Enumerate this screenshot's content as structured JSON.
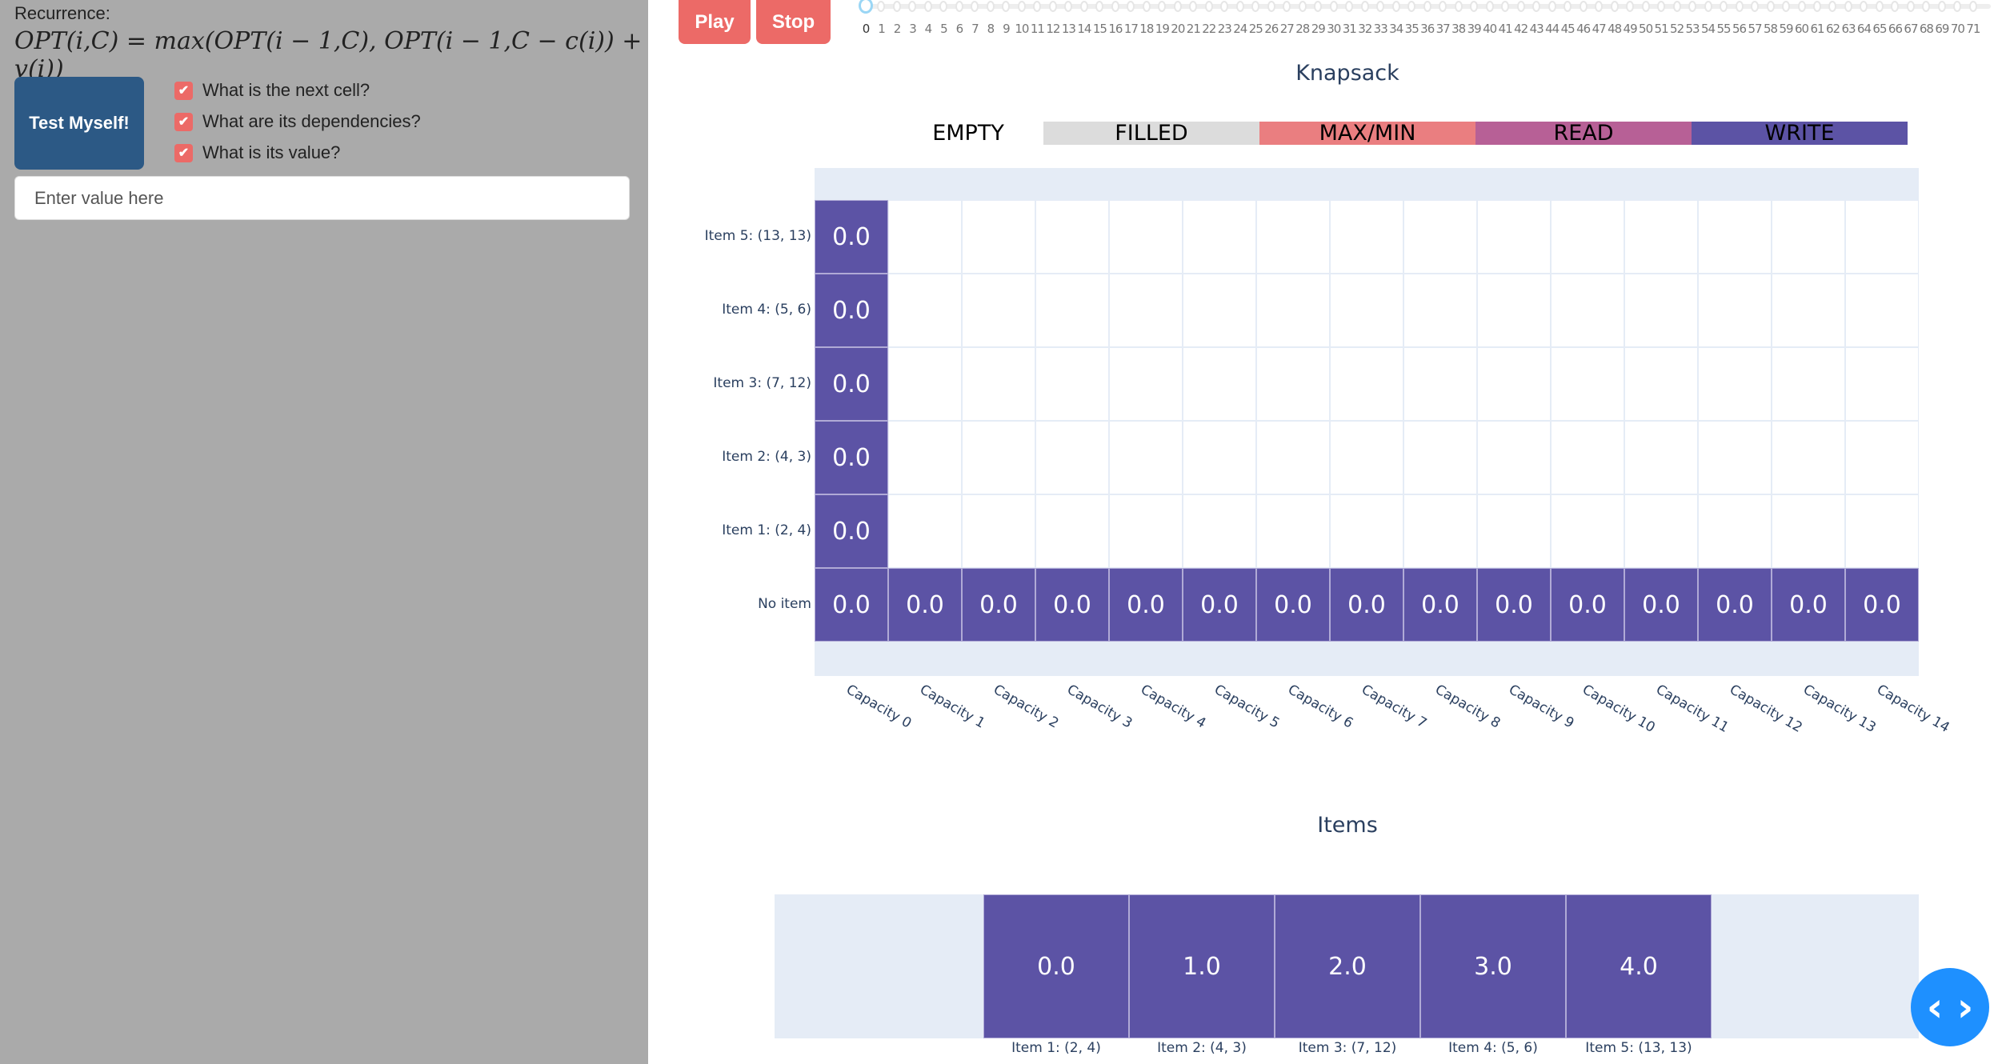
{
  "left_panel": {
    "recurrence_label": "Recurrence:",
    "formula": "OPT(i,C) = max(OPT(i − 1,C), OPT(i − 1,C − c(i)) + v(i))",
    "test_button": "Test Myself!",
    "checkboxes": [
      {
        "label": "What is the next cell?",
        "checked": true
      },
      {
        "label": "What are its dependencies?",
        "checked": true
      },
      {
        "label": "What is its value?",
        "checked": true
      }
    ],
    "input_placeholder": "Enter value here",
    "input_value": ""
  },
  "controls": {
    "play": "Play",
    "stop": "Stop"
  },
  "slider": {
    "min": 0,
    "max": 71,
    "value": 0
  },
  "knapsack": {
    "title": "Knapsack",
    "legend": [
      {
        "label": "EMPTY",
        "color": "#ffffff"
      },
      {
        "label": "FILLED",
        "color": "#dcdcdc"
      },
      {
        "label": "MAX/MIN",
        "color": "#ea7e80"
      },
      {
        "label": "READ",
        "color": "#b76096"
      },
      {
        "label": "WRITE",
        "color": "#5c53a5"
      }
    ],
    "row_labels": [
      "Item 5: (13, 13)",
      "Item 4: (5, 6)",
      "Item 3: (7, 12)",
      "Item 2: (4, 3)",
      "Item 1: (2, 4)",
      "No item"
    ],
    "col_labels": [
      "Capacity 0",
      "Capacity 1",
      "Capacity 2",
      "Capacity 3",
      "Capacity 4",
      "Capacity 5",
      "Capacity 6",
      "Capacity 7",
      "Capacity 8",
      "Capacity 9",
      "Capacity 10",
      "Capacity 11",
      "Capacity 12",
      "Capacity 13",
      "Capacity 14"
    ],
    "cells": [
      [
        "0.0",
        null,
        null,
        null,
        null,
        null,
        null,
        null,
        null,
        null,
        null,
        null,
        null,
        null,
        null
      ],
      [
        "0.0",
        null,
        null,
        null,
        null,
        null,
        null,
        null,
        null,
        null,
        null,
        null,
        null,
        null,
        null
      ],
      [
        "0.0",
        null,
        null,
        null,
        null,
        null,
        null,
        null,
        null,
        null,
        null,
        null,
        null,
        null,
        null
      ],
      [
        "0.0",
        null,
        null,
        null,
        null,
        null,
        null,
        null,
        null,
        null,
        null,
        null,
        null,
        null,
        null
      ],
      [
        "0.0",
        null,
        null,
        null,
        null,
        null,
        null,
        null,
        null,
        null,
        null,
        null,
        null,
        null,
        null
      ],
      [
        "0.0",
        "0.0",
        "0.0",
        "0.0",
        "0.0",
        "0.0",
        "0.0",
        "0.0",
        "0.0",
        "0.0",
        "0.0",
        "0.0",
        "0.0",
        "0.0",
        "0.0"
      ]
    ]
  },
  "items": {
    "title": "Items",
    "values": [
      "0.0",
      "1.0",
      "2.0",
      "3.0",
      "4.0"
    ],
    "labels": [
      "Item 1: (2, 4)",
      "Item 2: (4, 3)",
      "Item 3: (7, 12)",
      "Item 4: (5, 6)",
      "Item 5: (13, 13)"
    ]
  },
  "nav_button": {
    "icon": "chevron-left-right-icon",
    "label": "‹ ›"
  }
}
